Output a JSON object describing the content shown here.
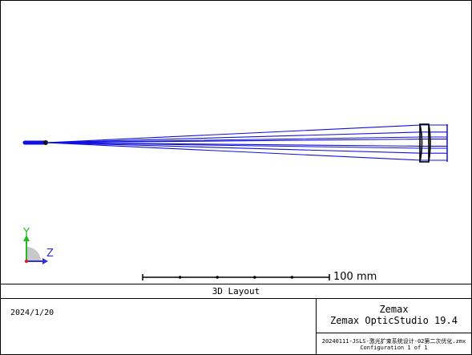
{
  "viewport": {
    "rays": {
      "color": "#1010e0",
      "source": "left-point-source",
      "count": 6
    },
    "axes": {
      "y_label": "Y",
      "z_label": "Z",
      "y_color": "#22bb22",
      "z_color": "#3030dd"
    },
    "scale_bar": {
      "label": "100 mm",
      "divisions": 5
    }
  },
  "title_bar": {
    "label": "3D Layout"
  },
  "info": {
    "date": "2024/1/20",
    "company": "Zemax",
    "product": "Zemax OpticStudio 19.4",
    "file_name": "20240111-JSLS-激光扩束系统设计-02第二次优化.zmx",
    "configuration": "Configuration 1 of 1"
  }
}
